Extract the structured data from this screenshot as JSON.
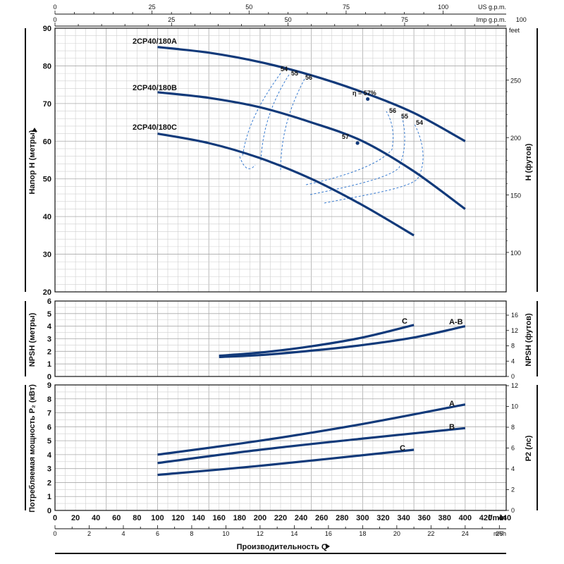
{
  "chart_data": {
    "type": "line",
    "flow_axis": {
      "title": "Производительность Q",
      "unit_lmin": "l/min",
      "unit_m3h": "m³/h",
      "unit_usgpm": "US g.p.m.",
      "unit_impgpm": "Imp g.p.m.",
      "lmin_range": [
        0,
        440
      ],
      "lmin_ticks": [
        "0",
        "20",
        "40",
        "60",
        "80",
        "100",
        "120",
        "140",
        "160",
        "180",
        "200",
        "220",
        "240",
        "260",
        "280",
        "300",
        "320",
        "340",
        "360",
        "380",
        "400",
        "420",
        "440"
      ],
      "m3h_ticks": [
        "0",
        "2",
        "4",
        "6",
        "8",
        "10",
        "12",
        "14",
        "16",
        "18",
        "20",
        "22",
        "24",
        "26"
      ],
      "usgpm_ticks": [
        "0",
        "25",
        "50",
        "75",
        "100"
      ],
      "impgpm_ticks": [
        "0",
        "25",
        "50",
        "75",
        "100"
      ]
    },
    "head_panel": {
      "ylabel_left": "Напор H (метры)",
      "ylabel_right": "H (футов)",
      "right_unit": "feet",
      "ylim": [
        20,
        90
      ],
      "yticks_left": [
        "20",
        "30",
        "40",
        "50",
        "60",
        "70",
        "80",
        "90"
      ],
      "yticks_right": [
        "100",
        "150",
        "200",
        "250"
      ],
      "series": [
        {
          "name": "2CP40/180A",
          "x": [
            100,
            150,
            200,
            250,
            300,
            350,
            400
          ],
          "y": [
            85,
            83.5,
            81,
            77.5,
            73,
            67.5,
            60
          ]
        },
        {
          "name": "2CP40/180B",
          "x": [
            100,
            150,
            200,
            250,
            300,
            350,
            400
          ],
          "y": [
            73,
            71.5,
            69,
            65,
            60,
            52,
            42
          ]
        },
        {
          "name": "2CP40/180C",
          "x": [
            100,
            150,
            200,
            250,
            300,
            350
          ],
          "y": [
            62,
            59.5,
            55.5,
            50,
            43,
            35
          ]
        }
      ],
      "efficiency_labels": [
        "54",
        "55",
        "56",
        "η = 57%",
        "57",
        "56",
        "55",
        "54"
      ],
      "efficiency_points": [
        {
          "label": "η = 57%",
          "x": 305,
          "y": 71.2
        },
        {
          "label": "57",
          "x": 295,
          "y": 59.5
        }
      ]
    },
    "npsh_panel": {
      "ylabel_left": "NPSH (метры)",
      "ylabel_right": "NPSH (футов)",
      "ylim": [
        0,
        6
      ],
      "yticks_left": [
        "0",
        "1",
        "2",
        "3",
        "4",
        "5",
        "6"
      ],
      "yticks_right": [
        "0",
        "4",
        "8",
        "12",
        "16"
      ],
      "series": [
        {
          "name": "C",
          "x": [
            160,
            200,
            250,
            300,
            350
          ],
          "y": [
            1.65,
            1.9,
            2.4,
            3.1,
            4.1
          ]
        },
        {
          "name": "A-B",
          "x": [
            160,
            200,
            250,
            300,
            350,
            400
          ],
          "y": [
            1.55,
            1.7,
            2.05,
            2.5,
            3.1,
            4.0
          ]
        }
      ]
    },
    "power_panel": {
      "ylabel_left": "Потребляемая мощность P₂ (кВт)",
      "ylabel_right": "P2 (лс)",
      "ylim": [
        0,
        9
      ],
      "yticks_left": [
        "0",
        "1",
        "2",
        "3",
        "4",
        "5",
        "6",
        "7",
        "8",
        "9"
      ],
      "yticks_right": [
        "0",
        "2",
        "4",
        "6",
        "8",
        "10",
        "12"
      ],
      "series": [
        {
          "name": "A",
          "x": [
            100,
            200,
            300,
            400
          ],
          "y": [
            4.0,
            5.0,
            6.2,
            7.6
          ]
        },
        {
          "name": "B",
          "x": [
            100,
            200,
            300,
            400
          ],
          "y": [
            3.4,
            4.35,
            5.15,
            5.9
          ]
        },
        {
          "name": "C",
          "x": [
            100,
            200,
            350
          ],
          "y": [
            2.55,
            3.2,
            4.35
          ]
        }
      ]
    }
  }
}
